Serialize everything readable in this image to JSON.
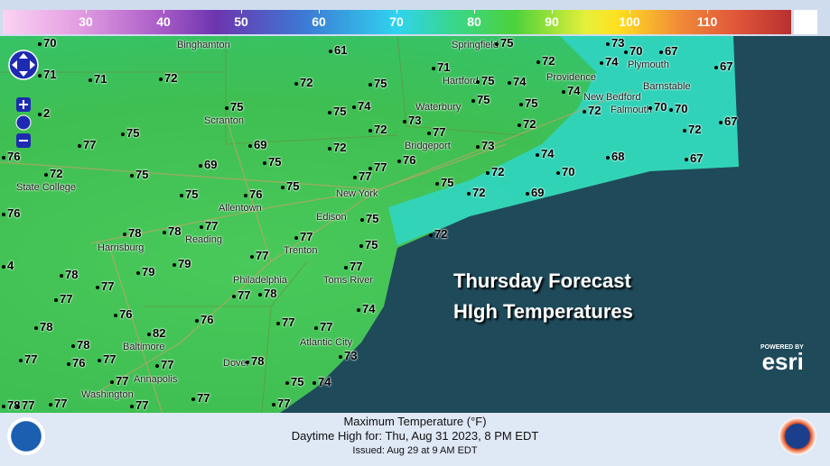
{
  "legend": {
    "ticks": [
      "30",
      "40",
      "50",
      "60",
      "70",
      "80",
      "90",
      "100",
      "110"
    ]
  },
  "map": {
    "overlay_title": [
      "Thursday Forecast",
      "HIgh Temperatures"
    ],
    "cities": [
      "Binghamton",
      "Springfield",
      "Hartford",
      "Providence",
      "Plymouth",
      "Barnstable",
      "New Bedford",
      "Falmouth",
      "Waterbury",
      "Scranton",
      "Bridgeport",
      "State College",
      "New York",
      "Allentown",
      "Edison",
      "Harrisburg",
      "Reading",
      "Trenton",
      "Philadelphia",
      "Toms River",
      "Atlantic City",
      "Baltimore",
      "Dover",
      "Annapolis",
      "Washington"
    ],
    "temperatures": [
      "70",
      "61",
      "73",
      "75",
      "67",
      "67",
      "71",
      "71",
      "72",
      "72",
      "75",
      "71",
      "75",
      "74",
      "72",
      "74",
      "74",
      "70",
      "75",
      "75",
      "72",
      "70",
      "70",
      "67",
      "72",
      "75",
      "74",
      "73",
      "72",
      "72",
      "2",
      "75",
      "75",
      "77",
      "69",
      "72",
      "77",
      "73",
      "74",
      "76",
      "69",
      "75",
      "77",
      "76",
      "72",
      "70",
      "68",
      "67",
      "72",
      "75",
      "75",
      "76",
      "75",
      "77",
      "75",
      "72",
      "69",
      "76",
      "77",
      "78",
      "75",
      "77",
      "72",
      "78",
      "75",
      "4",
      "78",
      "79",
      "79",
      "77",
      "77",
      "77",
      "77",
      "78",
      "77",
      "74",
      "76",
      "76",
      "78",
      "77",
      "77",
      "78",
      "82",
      "73",
      "77",
      "76",
      "77",
      "77",
      "78",
      "77",
      "77",
      "75",
      "74",
      "77",
      "78",
      "77",
      "77",
      "77"
    ],
    "land_color": "#45c455",
    "ocean_color": "#1f4a5a",
    "nearshore_color": "#2fd6c8"
  },
  "esri": {
    "powered": "POWERED BY",
    "brand": "esri"
  },
  "footer": {
    "line1": "Maximum Temperature (°F)",
    "line2": "Daytime High for: Thu, Aug 31 2023,   8 PM EDT",
    "line3": "Issued: Aug 29 at 9 AM EDT"
  },
  "logos": {
    "left": "NOAA",
    "right": "National Weather Service"
  }
}
